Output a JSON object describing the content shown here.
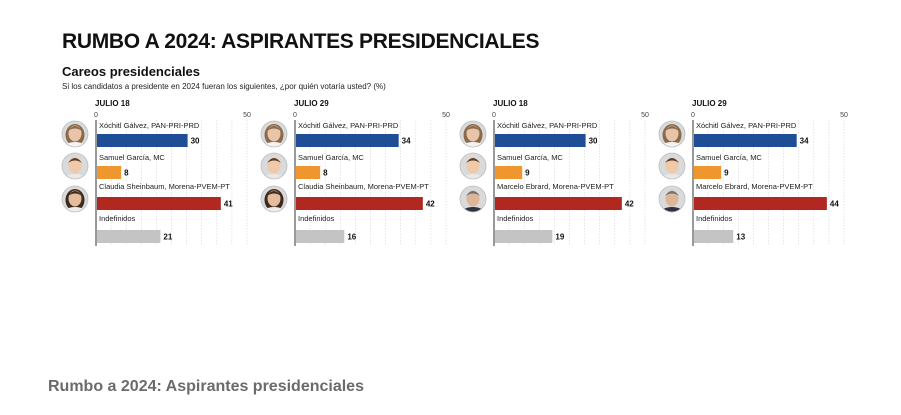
{
  "header": {
    "title": "RUMBO A 2024: ASPIRANTES PRESIDENCIALES",
    "subtitle": "Careos presidenciales",
    "question": "Si los candidatos a presidente en 2024 fueran los siguientes, ¿por quién votaría usted?  (%)"
  },
  "footer": {
    "caption": "Rumbo a 2024: Aspirantes presidenciales"
  },
  "colors": {
    "pan": "#1f4e96",
    "mc": "#f0962e",
    "morena": "#b0281f",
    "indef": "#c4c4c4",
    "grid": "#d6d6d6",
    "axis": "#555555"
  },
  "chart_data": [
    {
      "type": "bar",
      "title": "JULIO 18",
      "xlim": [
        0,
        50
      ],
      "ticks": [
        0,
        50
      ],
      "categories": [
        "Xóchitl Gálvez, PAN-PRI-PRD",
        "Samuel García, MC",
        "Claudia Sheinbaum, Morena-PVEM-PT",
        "Indefinidos"
      ],
      "values": [
        30,
        8,
        41,
        21
      ],
      "colors": [
        "pan",
        "mc",
        "morena",
        "indef"
      ],
      "avatars": [
        "xochitl-avatar",
        "samuel-avatar",
        "claudia-avatar",
        null
      ]
    },
    {
      "type": "bar",
      "title": "JULIO 29",
      "xlim": [
        0,
        50
      ],
      "ticks": [
        0,
        50
      ],
      "categories": [
        "Xóchitl Gálvez, PAN-PRI-PRD",
        "Samuel García, MC",
        "Claudia Sheinbaum, Morena-PVEM-PT",
        "Indefinidos"
      ],
      "values": [
        34,
        8,
        42,
        16
      ],
      "colors": [
        "pan",
        "mc",
        "morena",
        "indef"
      ],
      "avatars": [
        "xochitl-avatar",
        "samuel-avatar",
        "claudia-avatar",
        null
      ]
    },
    {
      "type": "bar",
      "title": "JULIO 18",
      "xlim": [
        0,
        50
      ],
      "ticks": [
        0,
        50
      ],
      "categories": [
        "Xóchitl Gálvez, PAN-PRI-PRD",
        "Samuel García, MC",
        "Marcelo Ebrard, Morena-PVEM-PT",
        "Indefinidos"
      ],
      "values": [
        30,
        9,
        42,
        19
      ],
      "colors": [
        "pan",
        "mc",
        "morena",
        "indef"
      ],
      "avatars": [
        "xochitl-avatar",
        "samuel-avatar",
        "marcelo-avatar",
        null
      ]
    },
    {
      "type": "bar",
      "title": "JULIO 29",
      "xlim": [
        0,
        50
      ],
      "ticks": [
        0,
        50
      ],
      "categories": [
        "Xóchitl Gálvez, PAN-PRI-PRD",
        "Samuel García, MC",
        "Marcelo Ebrard, Morena-PVEM-PT",
        "Indefinidos"
      ],
      "values": [
        34,
        9,
        44,
        13
      ],
      "colors": [
        "pan",
        "mc",
        "morena",
        "indef"
      ],
      "avatars": [
        "xochitl-avatar",
        "samuel-avatar",
        "marcelo-avatar",
        null
      ]
    }
  ]
}
